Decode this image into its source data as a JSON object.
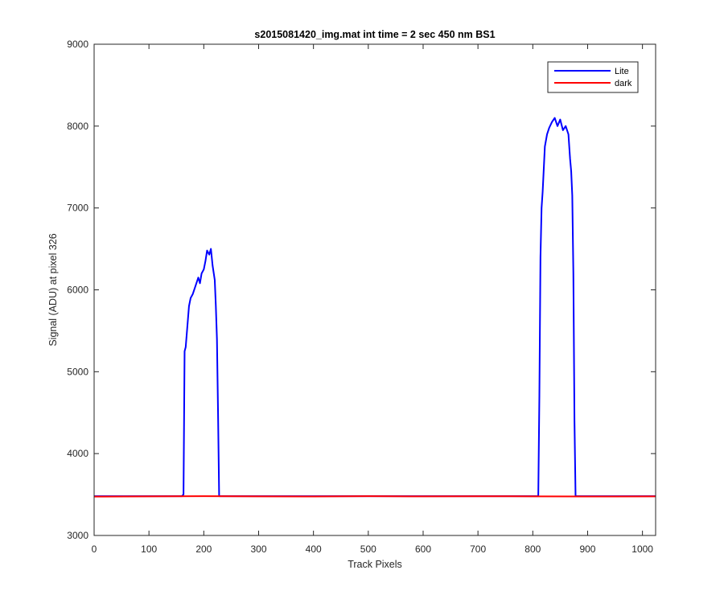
{
  "chart_data": {
    "type": "line",
    "title": "s2015081420_img.mat int time = 2 sec  450 nm BS1",
    "xlabel": "Track Pixels",
    "ylabel": "Signal (ADU) at pixel 326",
    "xlim": [
      0,
      1024
    ],
    "ylim": [
      3000,
      9000
    ],
    "xticks": [
      0,
      100,
      200,
      300,
      400,
      500,
      600,
      700,
      800,
      900,
      1000
    ],
    "yticks": [
      3000,
      4000,
      5000,
      6000,
      7000,
      8000,
      9000
    ],
    "grid": false,
    "legend_position": "top-right",
    "series": [
      {
        "name": "Lite",
        "color": "#0000ff",
        "x": [
          0,
          160,
          163,
          165,
          167,
          170,
          173,
          176,
          180,
          185,
          190,
          193,
          196,
          200,
          203,
          206,
          210,
          213,
          216,
          220,
          222,
          224,
          226,
          228,
          240,
          400,
          600,
          810,
          812,
          814,
          816,
          818,
          822,
          826,
          830,
          835,
          840,
          845,
          850,
          855,
          860,
          865,
          868,
          870,
          872,
          874,
          876,
          878,
          890,
          1024
        ],
        "y": [
          3480,
          3480,
          3500,
          5250,
          5300,
          5550,
          5800,
          5900,
          5950,
          6050,
          6150,
          6080,
          6200,
          6250,
          6350,
          6480,
          6430,
          6500,
          6300,
          6120,
          5800,
          5400,
          4500,
          3480,
          3480,
          3480,
          3480,
          3480,
          4700,
          6400,
          7000,
          7200,
          7750,
          7900,
          7980,
          8050,
          8100,
          8000,
          8080,
          7950,
          8000,
          7900,
          7600,
          7450,
          7150,
          6200,
          4400,
          3480,
          3480,
          3480
        ]
      },
      {
        "name": "dark",
        "color": "#ff0000",
        "x": [
          0,
          100,
          200,
          300,
          400,
          500,
          600,
          700,
          800,
          900,
          1024
        ],
        "y": [
          3475,
          3478,
          3480,
          3478,
          3476,
          3480,
          3477,
          3479,
          3478,
          3476,
          3477
        ]
      }
    ]
  }
}
